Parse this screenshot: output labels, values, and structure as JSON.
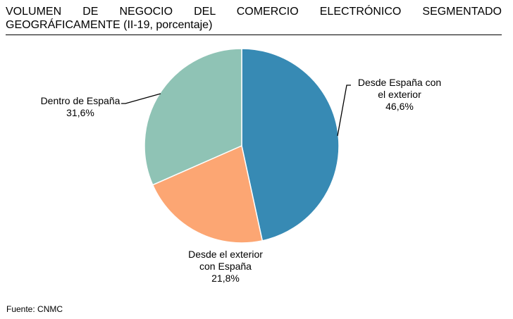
{
  "chart_data": {
    "type": "pie",
    "title": "VOLUMEN DE NEGOCIO DEL COMERCIO ELECTRÓNICO SEGMENTADO GEOGRÁFICAMENTE (II-19, porcentaje)",
    "start_angle_deg": 0,
    "direction": "clockwise",
    "slices": [
      {
        "name": "Desde España con el exterior",
        "label_lines": [
          "Desde España con",
          "el exterior"
        ],
        "value": 46.6,
        "value_label": "46,6%",
        "color": "#378ab4"
      },
      {
        "name": "Desde el exterior con España",
        "label_lines": [
          "Desde el exterior",
          "con España"
        ],
        "value": 21.8,
        "value_label": "21,8%",
        "color": "#fca673"
      },
      {
        "name": "Dentro de España",
        "label_lines": [
          "Dentro de España"
        ],
        "value": 31.6,
        "value_label": "31,6%",
        "color": "#8fc3b5"
      }
    ],
    "legend": "none"
  },
  "source": "Fuente: CNMC"
}
